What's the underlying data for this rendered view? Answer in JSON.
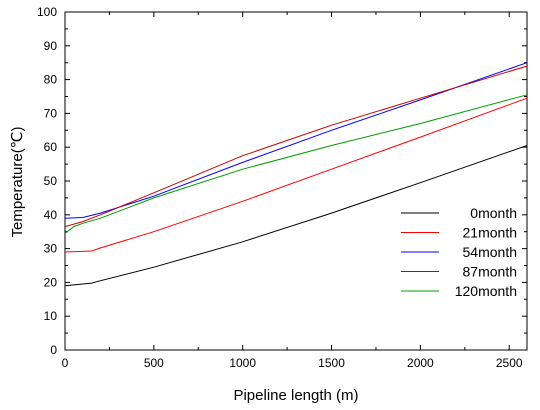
{
  "chart_data": {
    "type": "line",
    "xlabel": "Pipeline length (m)",
    "ylabel": "Temperature(℃)",
    "xlim": [
      0,
      2600
    ],
    "ylim": [
      0,
      100
    ],
    "x_ticks": [
      "0",
      "500",
      "1000",
      "1500",
      "2000",
      "2500"
    ],
    "y_ticks": [
      "0",
      "10",
      "20",
      "30",
      "40",
      "50",
      "60",
      "70",
      "80",
      "90",
      "100"
    ],
    "grid": false,
    "legend_position": "lower-right",
    "series": [
      {
        "name": "0month",
        "color": "#000000",
        "x": [
          0,
          150,
          200,
          500,
          1000,
          1500,
          2000,
          2600
        ],
        "y": [
          19,
          19.8,
          20.5,
          24.5,
          32,
          40.5,
          49.5,
          60.5
        ]
      },
      {
        "name": "21month",
        "color": "#ff0000",
        "x": [
          0,
          150,
          200,
          500,
          1000,
          1500,
          2000,
          2600
        ],
        "y": [
          29,
          29.3,
          30.2,
          35,
          44,
          53.5,
          63,
          74.5
        ]
      },
      {
        "name": "54month",
        "color": "#0000ff",
        "x": [
          0,
          100,
          200,
          500,
          1000,
          1500,
          2000,
          2600
        ],
        "y": [
          39,
          39.2,
          40.5,
          45.5,
          55.5,
          65,
          74,
          85
        ]
      },
      {
        "name": "87month",
        "color": "#cc0000",
        "x": [
          0,
          100,
          200,
          500,
          1000,
          1500,
          2000,
          2600
        ],
        "y": [
          36.5,
          38,
          40,
          46.5,
          57.5,
          66.5,
          74.5,
          84
        ]
      },
      {
        "name": "120month",
        "color": "#009900",
        "x": [
          0,
          50,
          100,
          200,
          500,
          1000,
          1500,
          2000,
          2600
        ],
        "y": [
          34.5,
          36.5,
          37.5,
          39,
          45,
          53.5,
          60.5,
          67,
          75.5
        ]
      }
    ]
  }
}
